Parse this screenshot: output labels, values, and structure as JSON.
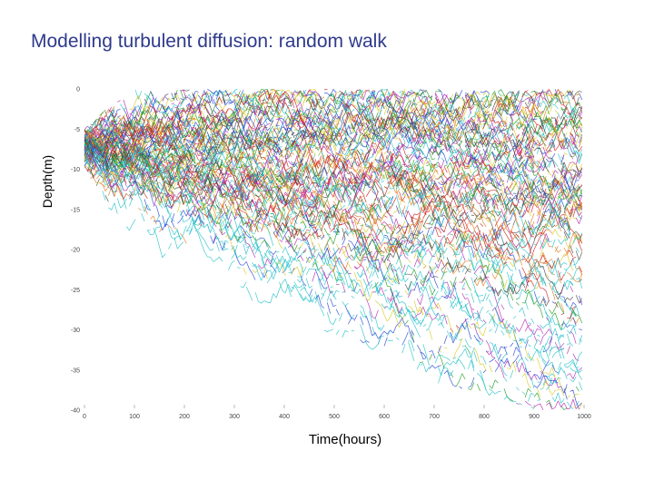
{
  "slide": {
    "title": "Modelling turbulent diffusion: random walk"
  },
  "chart_data": {
    "type": "line",
    "title": "",
    "xlabel": "Time(hours)",
    "ylabel": "Depth(m)",
    "xlim": [
      0,
      1000
    ],
    "ylim": [
      -40,
      0
    ],
    "x_ticks": [
      0,
      100,
      200,
      300,
      400,
      500,
      600,
      700,
      800,
      900,
      1000
    ],
    "y_ticks": [
      0,
      -5,
      -10,
      -15,
      -20,
      -25,
      -30,
      -35,
      -40
    ],
    "grid": false,
    "legend": "none",
    "description_of_series": "Many particle random-walk depth tracks starting near -7 m at time 0, spreading downward over time; deepest (cyan) tracks reach about -40 m near 900–1000 hours.",
    "series_colors": [
      "#1f3fd6",
      "#d01818",
      "#1a9a1a",
      "#b020b0",
      "#20c0c8",
      "#d8c820",
      "#444444",
      "#e07818"
    ],
    "envelope": {
      "x": [
        0,
        50,
        100,
        200,
        300,
        400,
        500,
        600,
        700,
        800,
        900,
        1000
      ],
      "top": [
        -5,
        -2,
        0,
        0,
        0,
        0,
        0,
        0,
        0,
        0,
        0,
        0
      ],
      "bottom": [
        -10,
        -16,
        -19,
        -23,
        -26,
        -28,
        -31,
        -33,
        -37,
        -38,
        -40,
        -40
      ]
    }
  }
}
